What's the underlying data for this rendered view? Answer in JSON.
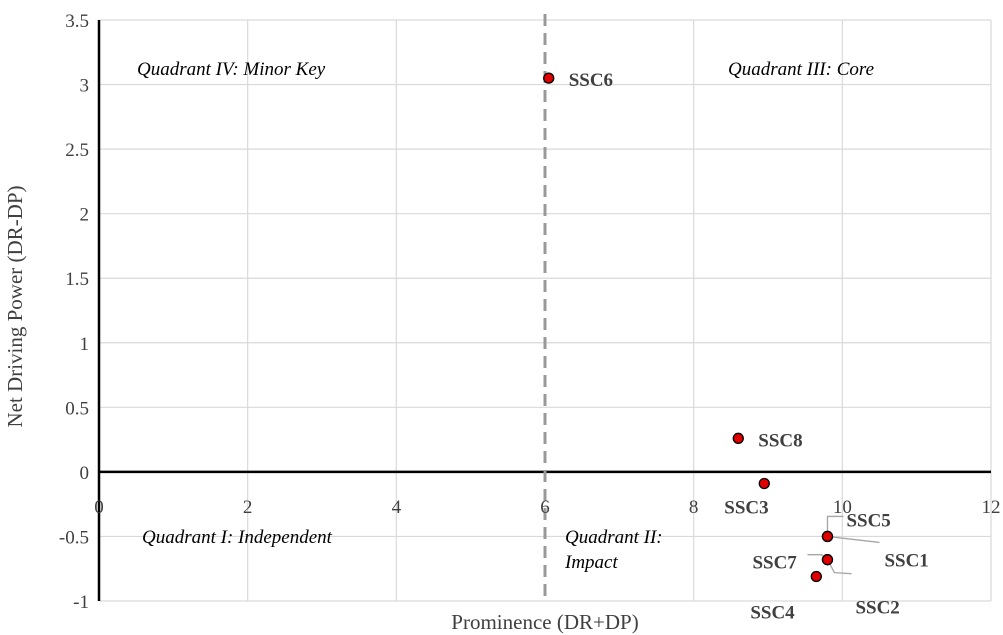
{
  "chart_data": {
    "type": "scatter",
    "xlabel": "Prominence (DR+DP)",
    "ylabel": "Net Driving Power (DR-DP)",
    "xlim": [
      0,
      12
    ],
    "ylim": [
      -1,
      3.5
    ],
    "x_ticks": [
      "0",
      "2",
      "4",
      "6",
      "8",
      "10",
      "12"
    ],
    "y_ticks": [
      "-1",
      "-0.5",
      "0",
      "0.5",
      "1",
      "1.5",
      "2",
      "2.5",
      "3",
      "3.5"
    ],
    "grid": true,
    "threshold_x": 6,
    "colors": {
      "point_fill": "#e00000",
      "threshold_line": "#999999",
      "grid": "#d9d9d9"
    },
    "quadrants": [
      {
        "text": "Quadrant IV: Minor Key",
        "lines": [
          "Quadrant  IV: Minor Key"
        ]
      },
      {
        "text": "Quadrant III: Core",
        "lines": [
          "Quadrant  III: Core"
        ]
      },
      {
        "text": "Quadrant I: Independent",
        "lines": [
          "Quadrant  I: Independent"
        ]
      },
      {
        "text": "Quadrant II: Impact",
        "lines": [
          "Quadrant  II:",
          "Impact"
        ]
      }
    ],
    "points": [
      {
        "label": "SSC1",
        "x": 9.8,
        "y": -0.5
      },
      {
        "label": "SSC2",
        "x": 9.8,
        "y": -0.68
      },
      {
        "label": "SSC3",
        "x": 8.95,
        "y": -0.09
      },
      {
        "label": "SSC4",
        "x": 9.65,
        "y": -0.81
      },
      {
        "label": "SSC5",
        "x": 9.8,
        "y": -0.5
      },
      {
        "label": "SSC6",
        "x": 6.05,
        "y": 3.05
      },
      {
        "label": "SSC7",
        "x": 9.8,
        "y": -0.68
      },
      {
        "label": "SSC8",
        "x": 8.6,
        "y": 0.26
      }
    ]
  }
}
